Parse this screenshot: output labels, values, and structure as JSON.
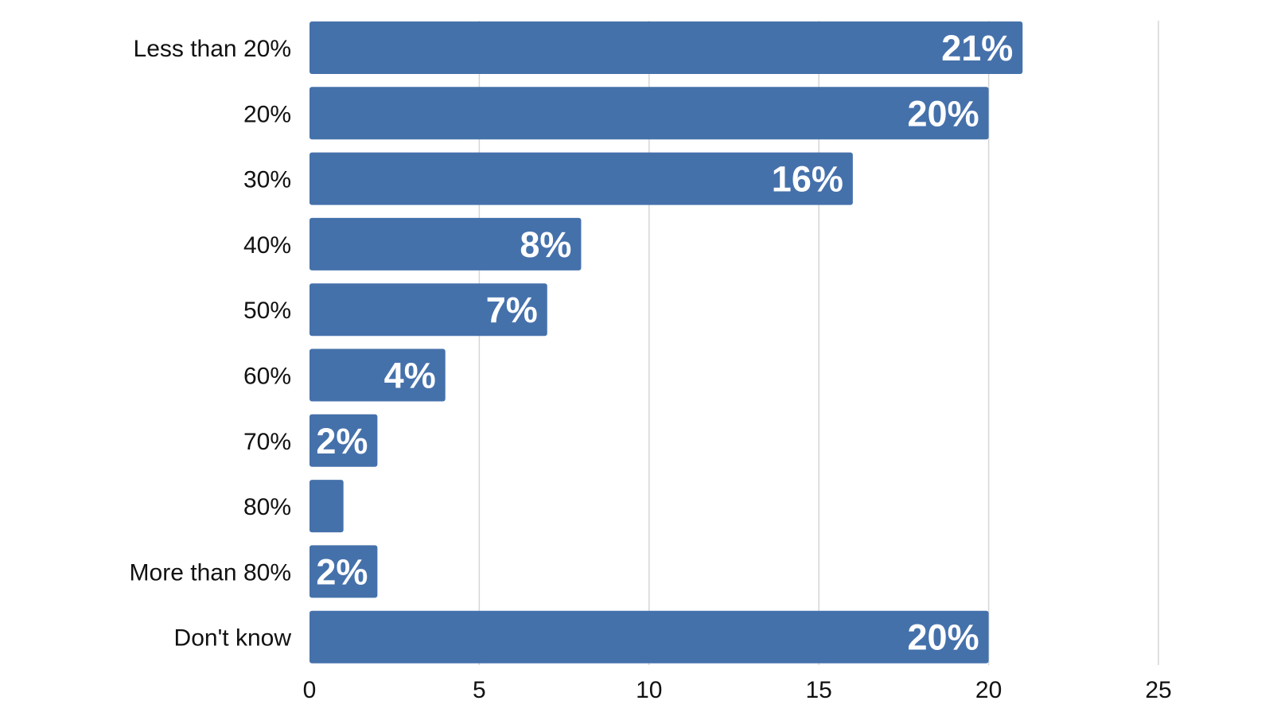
{
  "chart_data": {
    "type": "bar",
    "orientation": "horizontal",
    "title": "",
    "xlabel": "",
    "ylabel": "",
    "categories": [
      "Less than 20%",
      "20%",
      "30%",
      "40%",
      "50%",
      "60%",
      "70%",
      "80%",
      "More than 80%",
      "Don't know"
    ],
    "values": [
      21,
      20,
      16,
      8,
      7,
      4,
      2,
      1,
      2,
      20
    ],
    "data_labels": [
      "21%",
      "20%",
      "16%",
      "8%",
      "7%",
      "4%",
      "2%",
      "",
      "2%",
      "20%"
    ],
    "xlim": [
      0,
      25
    ],
    "xticks": [
      0,
      5,
      10,
      15,
      20,
      25
    ],
    "xtick_labels": [
      "0",
      "5",
      "10",
      "15",
      "20",
      "25"
    ],
    "grid": "vertical",
    "legend": "none",
    "colors": {
      "bar": "#4571ab",
      "grid": "#d6d6d6",
      "label_inside": "#ffffff",
      "text": "#111111"
    }
  }
}
